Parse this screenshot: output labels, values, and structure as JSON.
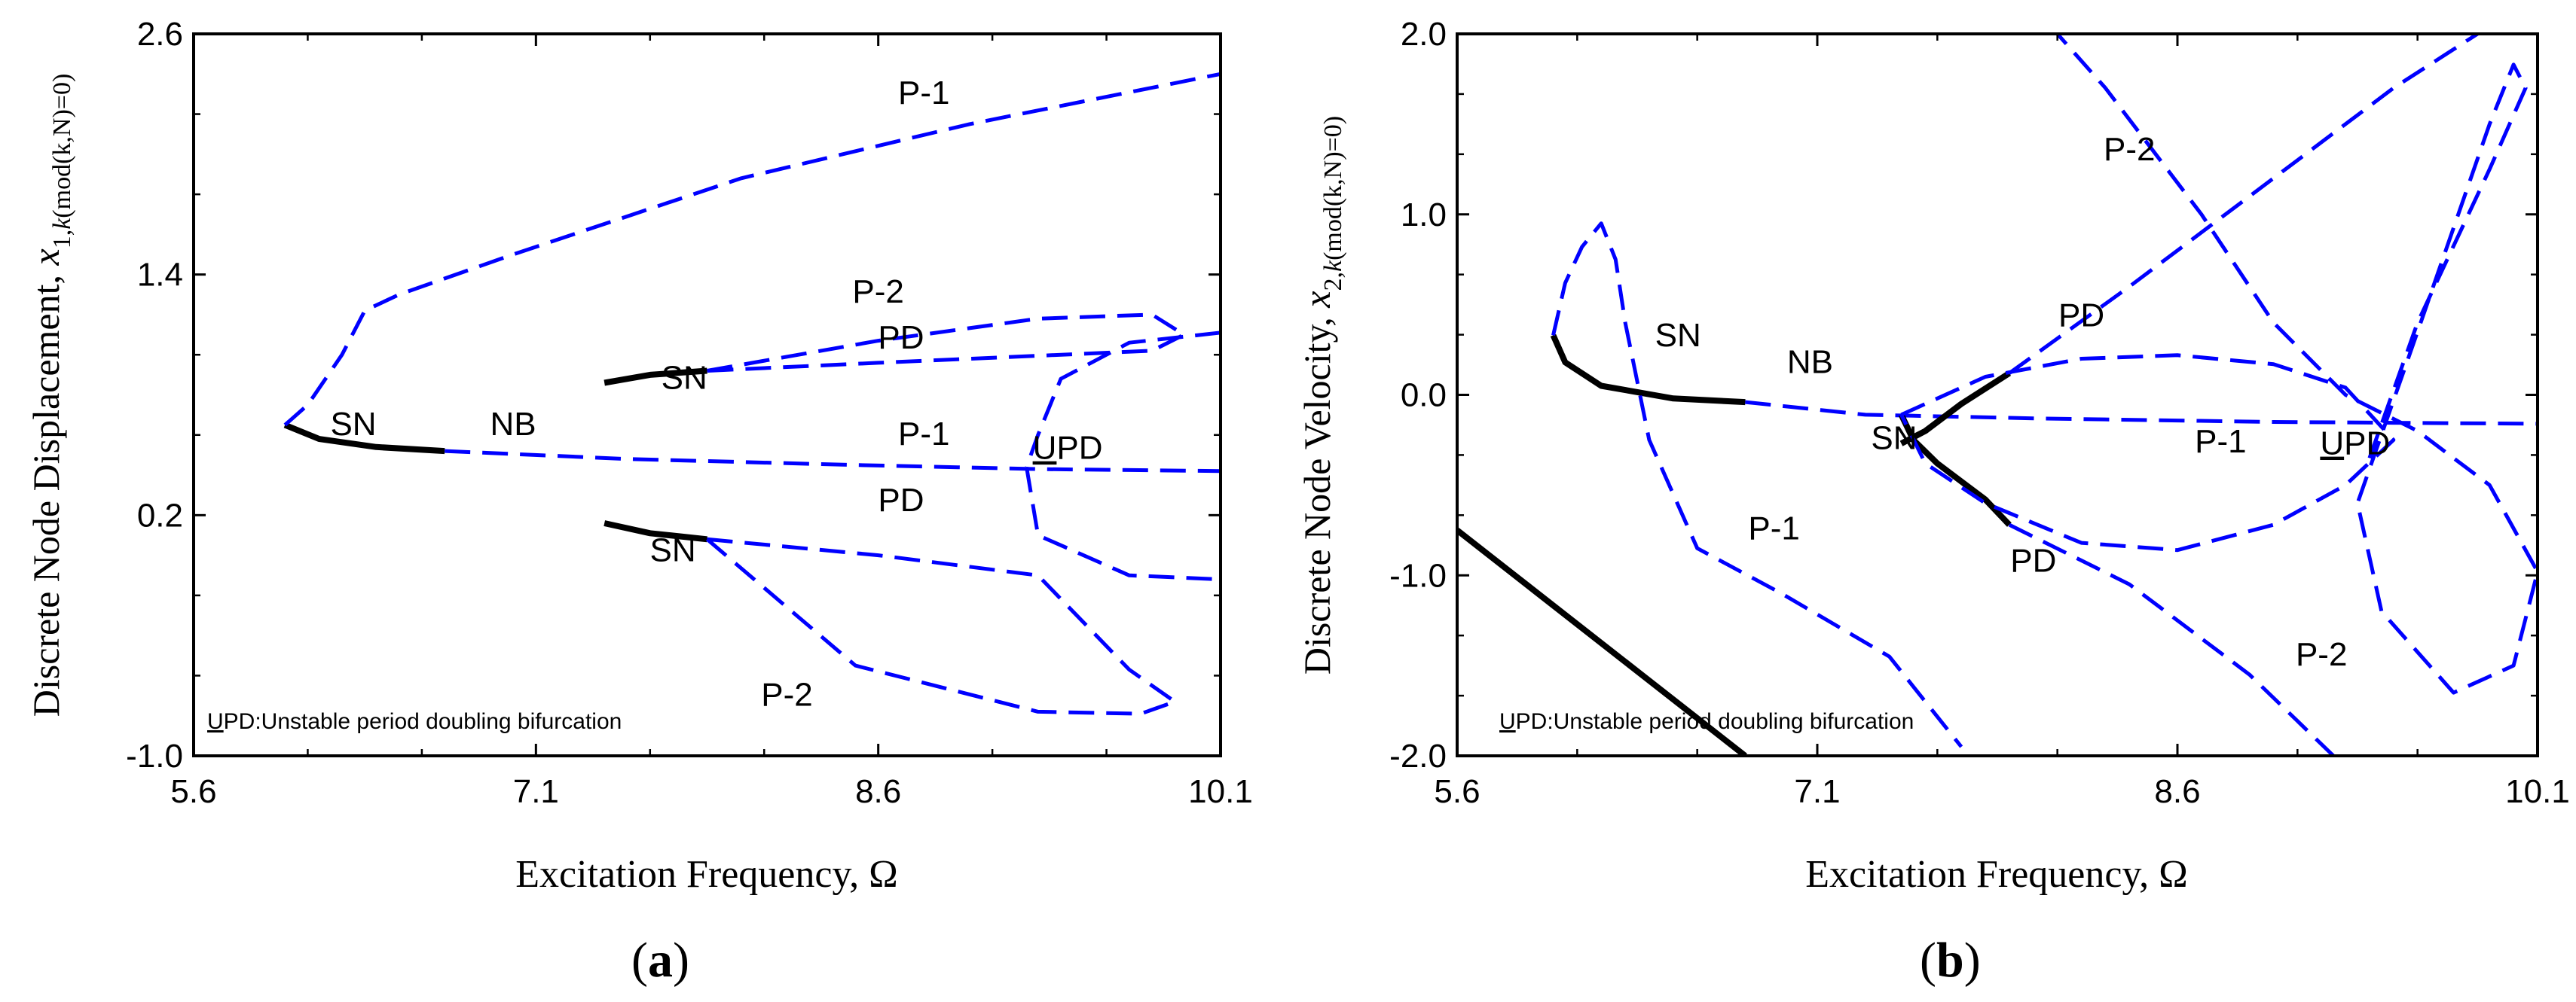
{
  "colors": {
    "stable": "#000000",
    "unstable": "#0000ff",
    "axis": "#000000",
    "background": "#ffffff"
  },
  "chart_data": [
    {
      "panel_label": {
        "prefix": "(",
        "letter": "a",
        "suffix": ")"
      },
      "type": "line",
      "xlabel": "Excitation Frequency, Ω",
      "ylabel": {
        "main": "Discrete Node Displacement, ",
        "symbol": "x",
        "subscript": "1,",
        "subscript_italic": "k",
        "subscript_tail": "(mod(k,N)=0)"
      },
      "xlim": [
        5.6,
        10.1
      ],
      "ylim": [
        -1.0,
        2.6
      ],
      "xticks": [
        5.6,
        7.1,
        8.6,
        10.1
      ],
      "xtick_labels": [
        "5.6",
        "7.1",
        "8.6",
        "10.1"
      ],
      "yticks": [
        -1.0,
        0.2,
        1.4,
        2.6
      ],
      "ytick_labels": [
        "-1.0",
        "0.2",
        "1.4",
        "2.6"
      ],
      "note": {
        "underlined": "U",
        "rest": "PD:Unstable period doubling bifurcation"
      },
      "labels": [
        {
          "text": "P-1",
          "x": 8.8,
          "y": 0.55
        },
        {
          "text": "P-1",
          "x": 8.8,
          "y": 2.25
        },
        {
          "text": "P-2",
          "x": 8.6,
          "y": 1.26
        },
        {
          "text": "P-2",
          "x": 8.2,
          "y": -0.75
        },
        {
          "text": "PD",
          "x": 8.7,
          "y": 1.03
        },
        {
          "text": "PD",
          "x": 8.7,
          "y": 0.22
        },
        {
          "text": "SN",
          "x": 7.75,
          "y": 0.83
        },
        {
          "text": "SN",
          "x": 7.7,
          "y": -0.03
        },
        {
          "text": "SN",
          "x": 6.3,
          "y": 0.6
        },
        {
          "text": "NB",
          "x": 7.0,
          "y": 0.6
        },
        {
          "text": "UPD",
          "x": 9.43,
          "y": 0.48,
          "underline_first": true
        }
      ],
      "series": [
        {
          "name": "P-1 stable (SN to NB)",
          "stability": "stable",
          "points": [
            [
              6.0,
              0.65
            ],
            [
              6.15,
              0.58
            ],
            [
              6.4,
              0.54
            ],
            [
              6.7,
              0.52
            ]
          ]
        },
        {
          "name": "P-1 unstable main branch",
          "stability": "unstable",
          "points": [
            [
              6.0,
              0.65
            ],
            [
              6.1,
              0.75
            ],
            [
              6.25,
              1.0
            ],
            [
              6.35,
              1.22
            ],
            [
              6.5,
              1.3
            ],
            [
              7.0,
              1.5
            ],
            [
              8.0,
              1.88
            ],
            [
              9.0,
              2.15
            ],
            [
              10.1,
              2.4
            ]
          ]
        },
        {
          "name": "P-1 unstable low branch",
          "stability": "unstable",
          "points": [
            [
              6.7,
              0.52
            ],
            [
              7.5,
              0.48
            ],
            [
              8.5,
              0.45
            ],
            [
              9.3,
              0.43
            ],
            [
              10.1,
              0.42
            ]
          ]
        },
        {
          "name": "P-2 upper stable",
          "stability": "stable",
          "points": [
            [
              7.4,
              0.86
            ],
            [
              7.6,
              0.9
            ],
            [
              7.85,
              0.92
            ]
          ]
        },
        {
          "name": "P-2 lower stable",
          "stability": "stable",
          "points": [
            [
              7.4,
              0.16
            ],
            [
              7.6,
              0.11
            ],
            [
              7.85,
              0.08
            ]
          ]
        },
        {
          "name": "P-2 upper loop (PD)",
          "stability": "unstable",
          "points": [
            [
              7.85,
              0.92
            ],
            [
              8.6,
              1.07
            ],
            [
              9.3,
              1.18
            ],
            [
              9.8,
              1.2
            ],
            [
              9.94,
              1.1
            ],
            [
              9.8,
              1.02
            ],
            [
              9.2,
              0.99
            ],
            [
              8.6,
              0.96
            ],
            [
              7.85,
              0.92
            ]
          ]
        },
        {
          "name": "P-2 lower loop (PD)",
          "stability": "unstable",
          "points": [
            [
              7.85,
              0.08
            ],
            [
              8.6,
              0.0
            ],
            [
              9.3,
              -0.1
            ],
            [
              9.7,
              -0.57
            ],
            [
              9.9,
              -0.73
            ],
            [
              9.75,
              -0.79
            ],
            [
              9.3,
              -0.78
            ],
            [
              8.5,
              -0.55
            ],
            [
              7.85,
              0.08
            ]
          ]
        },
        {
          "name": "UPD upper tail",
          "stability": "unstable",
          "points": [
            [
              10.1,
              1.11
            ],
            [
              9.7,
              1.06
            ],
            [
              9.4,
              0.88
            ],
            [
              9.3,
              0.6
            ],
            [
              9.25,
              0.44
            ]
          ]
        },
        {
          "name": "UPD lower tail",
          "stability": "unstable",
          "points": [
            [
              9.25,
              0.44
            ],
            [
              9.3,
              0.1
            ],
            [
              9.7,
              -0.1
            ],
            [
              10.1,
              -0.12
            ]
          ]
        }
      ]
    },
    {
      "panel_label": {
        "prefix": "(",
        "letter": "b",
        "suffix": ")"
      },
      "type": "line",
      "xlabel": "Excitation Frequency, Ω",
      "ylabel": {
        "main": "Discrete Node Velocity, ",
        "symbol": "x",
        "subscript": "2,",
        "subscript_italic": "k",
        "subscript_tail": "(mod(k,N)=0)"
      },
      "xlim": [
        5.6,
        10.1
      ],
      "ylim": [
        -2.0,
        2.0
      ],
      "xticks": [
        5.6,
        7.1,
        8.6,
        10.1
      ],
      "xtick_labels": [
        "5.6",
        "7.1",
        "8.6",
        "10.1"
      ],
      "yticks": [
        -2.0,
        -1.0,
        0.0,
        1.0,
        2.0
      ],
      "ytick_labels": [
        "-2.0",
        "-1.0",
        "0.0",
        "1.0",
        "2.0"
      ],
      "note": {
        "underlined": "U",
        "rest": "PD:Unstable period doubling bifurcation"
      },
      "labels": [
        {
          "text": "P-2",
          "x": 8.4,
          "y": 1.3
        },
        {
          "text": "P-2",
          "x": 9.2,
          "y": -1.5
        },
        {
          "text": "PD",
          "x": 8.2,
          "y": 0.38
        },
        {
          "text": "PD",
          "x": 8.0,
          "y": -0.98
        },
        {
          "text": "SN",
          "x": 6.52,
          "y": 0.27
        },
        {
          "text": "SN",
          "x": 7.42,
          "y": -0.3
        },
        {
          "text": "NB",
          "x": 7.07,
          "y": 0.12
        },
        {
          "text": "P-1",
          "x": 6.92,
          "y": -0.8
        },
        {
          "text": "P-1",
          "x": 8.78,
          "y": -0.32
        },
        {
          "text": "UPD",
          "x": 9.34,
          "y": -0.33,
          "underline_first": true
        }
      ],
      "series": [
        {
          "name": "P-1 stable (SN to NB)",
          "stability": "stable",
          "points": [
            [
              6.0,
              0.33
            ],
            [
              6.05,
              0.18
            ],
            [
              6.2,
              0.05
            ],
            [
              6.5,
              -0.02
            ],
            [
              6.8,
              -0.04
            ]
          ]
        },
        {
          "name": "Stable diagonal",
          "stability": "stable",
          "points": [
            [
              5.6,
              -0.75
            ],
            [
              6.8,
              -2.0
            ]
          ]
        },
        {
          "name": "P-1 unstable left loop",
          "stability": "unstable",
          "points": [
            [
              6.0,
              0.33
            ],
            [
              6.05,
              0.62
            ],
            [
              6.12,
              0.82
            ],
            [
              6.2,
              0.95
            ],
            [
              6.26,
              0.75
            ],
            [
              6.3,
              0.4
            ],
            [
              6.4,
              -0.25
            ],
            [
              6.6,
              -0.85
            ],
            [
              6.95,
              -1.1
            ],
            [
              7.4,
              -1.45
            ],
            [
              7.7,
              -1.95
            ]
          ]
        },
        {
          "name": "P-1 unstable nearly flat",
          "stability": "unstable",
          "points": [
            [
              6.8,
              -0.04
            ],
            [
              7.3,
              -0.11
            ],
            [
              8.0,
              -0.13
            ],
            [
              9.0,
              -0.15
            ],
            [
              10.1,
              -0.16
            ]
          ]
        },
        {
          "name": "P-2 stable from SN",
          "stability": "stable",
          "points": [
            [
              7.45,
              -0.11
            ],
            [
              7.5,
              -0.25
            ],
            [
              7.6,
              -0.38
            ],
            [
              7.8,
              -0.58
            ],
            [
              7.9,
              -0.72
            ]
          ]
        },
        {
          "name": "P-2 stable upper short",
          "stability": "stable",
          "points": [
            [
              7.45,
              -0.27
            ],
            [
              7.55,
              -0.2
            ],
            [
              7.7,
              -0.05
            ],
            [
              7.9,
              0.12
            ]
          ]
        },
        {
          "name": "P-2 upper branch",
          "stability": "unstable",
          "points": [
            [
              7.9,
              0.12
            ],
            [
              8.4,
              0.6
            ],
            [
              9.0,
              1.2
            ],
            [
              9.5,
              1.7
            ],
            [
              9.85,
              2.0
            ]
          ]
        },
        {
          "name": "P-2 lower branch",
          "stability": "unstable",
          "points": [
            [
              7.9,
              -0.72
            ],
            [
              8.4,
              -1.05
            ],
            [
              8.9,
              -1.55
            ],
            [
              9.25,
              -2.0
            ]
          ]
        },
        {
          "name": "PD loop",
          "stability": "unstable",
          "points": [
            [
              7.45,
              -0.11
            ],
            [
              7.8,
              0.1
            ],
            [
              8.2,
              0.2
            ],
            [
              8.6,
              0.22
            ],
            [
              9.0,
              0.17
            ],
            [
              9.3,
              0.04
            ],
            [
              9.5,
              -0.25
            ],
            [
              9.3,
              -0.5
            ],
            [
              9.0,
              -0.72
            ],
            [
              8.6,
              -0.86
            ],
            [
              8.2,
              -0.82
            ],
            [
              7.8,
              -0.6
            ],
            [
              7.55,
              -0.38
            ],
            [
              7.45,
              -0.11
            ]
          ]
        },
        {
          "name": "UPD loop",
          "stability": "unstable",
          "points": [
            [
              9.4,
              -0.35
            ],
            [
              9.6,
              0.4
            ],
            [
              9.9,
              1.25
            ],
            [
              10.05,
              1.7
            ],
            [
              10.0,
              1.83
            ],
            [
              9.9,
              1.5
            ],
            [
              9.6,
              0.35
            ],
            [
              9.35,
              -0.6
            ],
            [
              9.45,
              -1.2
            ],
            [
              9.75,
              -1.65
            ],
            [
              10.0,
              -1.5
            ],
            [
              10.1,
              -0.98
            ],
            [
              9.9,
              -0.5
            ],
            [
              9.6,
              -0.2
            ],
            [
              9.3,
              0.0
            ],
            [
              9.0,
              0.4
            ],
            [
              8.7,
              1.0
            ],
            [
              8.3,
              1.7
            ],
            [
              8.1,
              2.0
            ]
          ]
        }
      ]
    }
  ]
}
